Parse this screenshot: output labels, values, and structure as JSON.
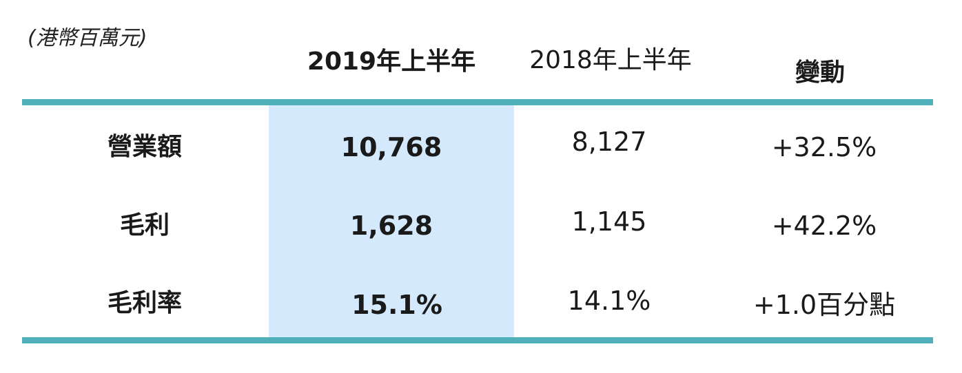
{
  "unit_label": "(港幣百萬元)",
  "chart_data": {
    "type": "table",
    "columns": [
      "2019年上半年",
      "2018年上半年",
      "變動"
    ],
    "rows": [
      {
        "label": "營業額",
        "values": [
          "10,768",
          "8,127",
          "+32.5%"
        ]
      },
      {
        "label": "毛利",
        "values": [
          "1,628",
          "1,145",
          "+42.2%"
        ]
      },
      {
        "label": "毛利率",
        "values": [
          "15.1%",
          "14.1%",
          "+1.0百分點"
        ]
      }
    ]
  },
  "colors": {
    "rule": "#4fb0b9",
    "highlight_column": "#d4e9fb"
  }
}
